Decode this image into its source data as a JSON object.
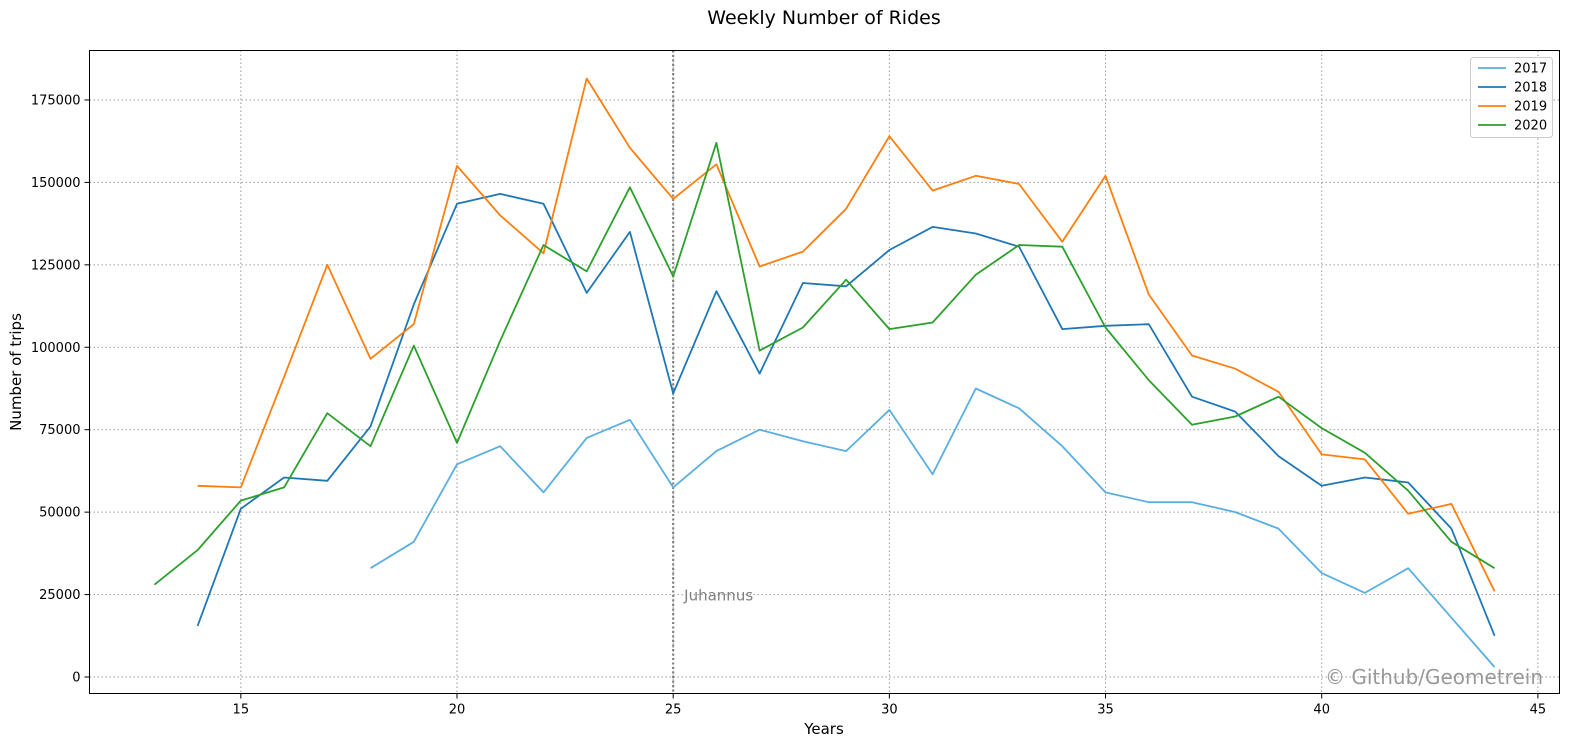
{
  "chart_data": {
    "type": "line",
    "title": "Weekly Number of Rides",
    "xlabel": "Years",
    "ylabel": "Number of trips",
    "xlim": [
      11.5,
      45.5
    ],
    "ylim": [
      -5000,
      190000
    ],
    "xticks": [
      15,
      20,
      25,
      30,
      35,
      40,
      45
    ],
    "yticks": [
      0,
      25000,
      50000,
      75000,
      100000,
      125000,
      150000,
      175000
    ],
    "grid": true,
    "legend_position": "top-right",
    "series": [
      {
        "name": "2017",
        "color": "#5aafe0",
        "x": [
          18,
          19,
          20,
          21,
          22,
          23,
          24,
          25,
          26,
          27,
          28,
          29,
          30,
          31,
          32,
          33,
          34,
          35,
          36,
          37,
          38,
          39,
          40,
          41,
          42,
          43,
          44
        ],
        "values": [
          33000,
          41000,
          64500,
          70000,
          56000,
          72500,
          78000,
          57500,
          68500,
          75000,
          71500,
          68500,
          81000,
          61500,
          87500,
          81500,
          70000,
          56000,
          53000,
          53000,
          50000,
          45000,
          31500,
          25500,
          33000,
          18000,
          3000
        ]
      },
      {
        "name": "2018",
        "color": "#1f77b4",
        "x": [
          14,
          15,
          16,
          17,
          18,
          19,
          20,
          21,
          22,
          23,
          24,
          25,
          26,
          27,
          28,
          29,
          30,
          31,
          32,
          33,
          34,
          35,
          36,
          37,
          38,
          39,
          40,
          41,
          42,
          43,
          44
        ],
        "values": [
          15500,
          51000,
          60500,
          59500,
          76000,
          113000,
          143500,
          146500,
          143500,
          116500,
          135000,
          86000,
          117000,
          92000,
          119500,
          118500,
          129500,
          136500,
          134500,
          130500,
          105500,
          106500,
          107000,
          85000,
          80500,
          67000,
          58000,
          60500,
          59000,
          45000,
          12500
        ]
      },
      {
        "name": "2019",
        "color": "#ff7f0e",
        "x": [
          14,
          15,
          16,
          17,
          18,
          19,
          20,
          21,
          22,
          23,
          24,
          25,
          26,
          27,
          28,
          29,
          30,
          31,
          32,
          33,
          34,
          35,
          36,
          37,
          38,
          39,
          40,
          41,
          42,
          43,
          44
        ],
        "values": [
          58000,
          57500,
          91000,
          125000,
          96500,
          107000,
          155000,
          140000,
          128500,
          181500,
          160500,
          145000,
          155500,
          124500,
          129000,
          142000,
          164000,
          147500,
          152000,
          149500,
          132000,
          152000,
          116000,
          97500,
          93500,
          86500,
          67500,
          66000,
          49500,
          52500,
          26000
        ]
      },
      {
        "name": "2020",
        "color": "#2ca02c",
        "x": [
          13,
          14,
          15,
          16,
          17,
          18,
          19,
          20,
          21,
          22,
          23,
          24,
          25,
          26,
          27,
          28,
          29,
          30,
          31,
          32,
          33,
          34,
          35,
          36,
          37,
          38,
          39,
          40,
          41,
          42,
          43,
          44
        ],
        "values": [
          28000,
          38500,
          53500,
          57500,
          80000,
          70000,
          100500,
          71000,
          102000,
          131000,
          123000,
          148500,
          121500,
          162000,
          99000,
          106000,
          120500,
          105500,
          107500,
          122000,
          131000,
          130500,
          106000,
          90000,
          76500,
          79000,
          85000,
          75500,
          68000,
          56500,
          41000,
          33000
        ]
      }
    ],
    "annotations": [
      {
        "type": "vline",
        "x": 25,
        "label": "Juhannus",
        "label_y": 25000
      }
    ]
  },
  "watermark": "© Github/Geometrein"
}
